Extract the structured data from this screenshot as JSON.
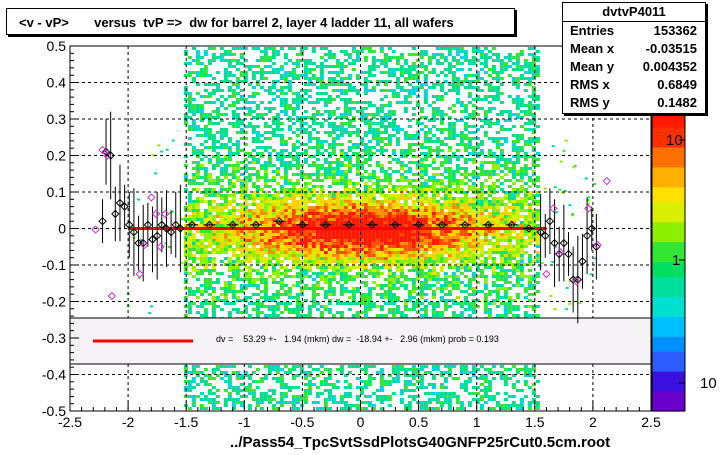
{
  "title": "<v - vP>       versus  tvP =>  dw for barrel 2, layer 4 ladder 11, all wafers",
  "stats": {
    "name": "dvtvP4011",
    "rows": [
      {
        "key": "Entries",
        "value": "153362"
      },
      {
        "key": "Mean x",
        "value": "-0.03515"
      },
      {
        "key": "Mean y",
        "value": "0.004352"
      },
      {
        "key": "RMS x",
        "value": "0.6849"
      },
      {
        "key": "RMS y",
        "value": "0.1482"
      }
    ]
  },
  "x_axis_title": "../Pass54_TpcSvtSsdPlotsG40GNFP25rCut0.5cm.root",
  "legend": {
    "text": "dv =    53.29 +-   1.94 (mkm) dw =  -18.94 +-   2.96 (mkm) prob = 0.193",
    "line_color": "#ff0000"
  },
  "colors": {
    "fit_line": "#ff0000",
    "profile_marker": "#000000",
    "outlier_marker": "#cc33cc"
  },
  "chart_data": {
    "type": "heatmap",
    "xlim": [
      -2.5,
      2.5
    ],
    "ylim": [
      -0.5,
      0.5
    ],
    "x_ticks": [
      "-2.5",
      "-2",
      "-1.5",
      "-1",
      "-0.5",
      "0",
      "0.5",
      "1",
      "1.5",
      "2",
      "2.5"
    ],
    "y_ticks": [
      "-0.5",
      "-0.4",
      "-0.3",
      "-0.2",
      "-0.1",
      "0",
      "0.1",
      "0.2",
      "0.3",
      "0.4",
      "0.5"
    ],
    "grid": true,
    "colorbar": {
      "scale": "log",
      "labels": [
        "10",
        "1",
        "10"
      ]
    },
    "profile": {
      "x": [
        -2.22,
        -2.19,
        -2.15,
        -2.11,
        -2.07,
        -2.03,
        -1.99,
        -1.95,
        -1.91,
        -1.87,
        -1.83,
        -1.79,
        -1.75,
        -1.71,
        -1.67,
        -1.63,
        -1.59,
        -1.55,
        -1.45,
        -1.3,
        -1.1,
        -0.9,
        -0.7,
        -0.5,
        -0.3,
        -0.1,
        0.1,
        0.3,
        0.5,
        0.7,
        0.9,
        1.1,
        1.3,
        1.45,
        1.55,
        1.59,
        1.63,
        1.67,
        1.71,
        1.75,
        1.79,
        1.83,
        1.87,
        1.91,
        1.95,
        1.99,
        2.03
      ],
      "y": [
        0.02,
        0.21,
        0.2,
        0.04,
        0.07,
        0.06,
        0.01,
        -0.01,
        -0.04,
        -0.04,
        0.01,
        -0.03,
        -0.02,
        0.01,
        0.0,
        -0.01,
        0.01,
        0.0,
        0.01,
        0.01,
        0.01,
        0.01,
        0.02,
        0.01,
        0.01,
        0.01,
        0.01,
        0.01,
        0.01,
        0.01,
        0.01,
        0.01,
        0.01,
        0.0,
        -0.01,
        -0.02,
        0.02,
        -0.04,
        -0.07,
        -0.04,
        -0.07,
        -0.14,
        -0.14,
        -0.09,
        -0.02,
        0.0,
        -0.05
      ]
    },
    "outliers": {
      "x": [
        -2.28,
        -2.22,
        -2.18,
        -2.14,
        -1.9,
        -1.86,
        -1.8,
        -1.76,
        -1.72,
        -1.68,
        1.6,
        1.66,
        1.72,
        1.86,
        1.96,
        2.04,
        2.12
      ],
      "y": [
        -0.003,
        0.215,
        0.2,
        -0.185,
        -0.125,
        -0.045,
        0.085,
        0.04,
        -0.05,
        0.04,
        -0.125,
        0.055,
        -0.065,
        -0.145,
        0.055,
        -0.045,
        0.13
      ]
    },
    "fit_line": {
      "x": [
        -2.0,
        1.6
      ],
      "y": [
        0.0,
        0.0
      ]
    }
  }
}
